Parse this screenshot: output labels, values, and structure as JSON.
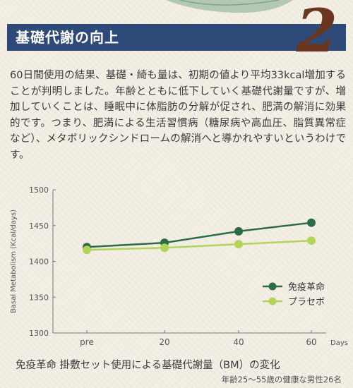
{
  "header": {
    "title": "基礎代謝の向上",
    "number": "2"
  },
  "body_text": "60日間使用の結果、基礎・綺も量は、初期の値より平均33kcal増加することが判明しました。年齢とともに低下していく基礎代謝量ですが、増加していくことは、睡眠中に体脂肪の分解が促され、肥満の解消に効果的です。つまり、肥満による生活習慣病（糖尿病や高血圧、脂質異常症など）、メタボリックシンドロームの解消へと導かれやすいというわけです。",
  "caption": "免疫革命 掛敷セット使用による基礎代謝量（BM）の変化",
  "subcaption": "年齢25〜55歳の健康な男性26名",
  "colors": {
    "header_band": "#2e4a78",
    "number": "#6a3620",
    "series_main": "#2d6b45",
    "series_placebo": "#b3d45a"
  },
  "chart_data": {
    "type": "line",
    "title": "",
    "xlabel": "Days",
    "ylabel": "Basal Metabolism (Kcal/days)",
    "categories": [
      "pre",
      "20",
      "40",
      "60"
    ],
    "ylim": [
      1300,
      1500
    ],
    "yticks": [
      "1300",
      "1350",
      "1400",
      "1450",
      "1500"
    ],
    "grid": false,
    "legend_position": "bottom-right",
    "series": [
      {
        "name": "免疫革命",
        "values": [
          1420,
          1426,
          1442,
          1454
        ]
      },
      {
        "name": "プラセボ",
        "values": [
          1416,
          1419,
          1424,
          1429
        ]
      }
    ]
  }
}
